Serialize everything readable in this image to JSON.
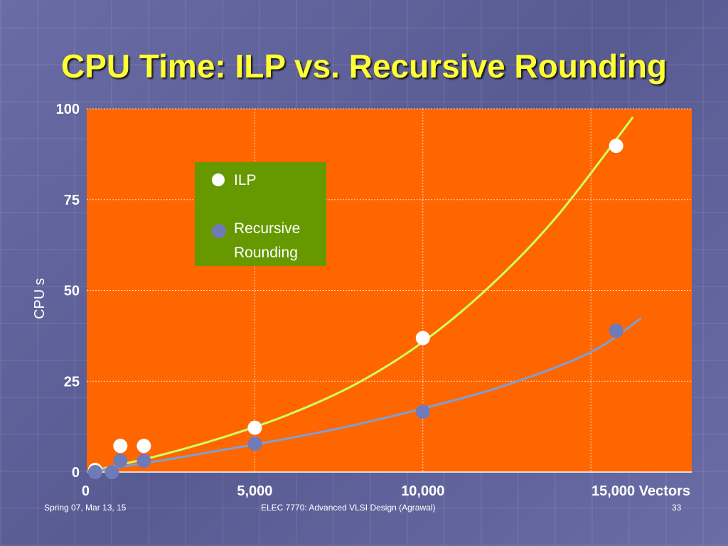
{
  "slide": {
    "title": "CPU Time: ILP vs. Recursive Rounding",
    "footer_left": "Spring 07, Mar 13, 15",
    "footer_center": "ELEC 7770: Advanced VLSI Design (Agrawal)",
    "footer_right": "33"
  },
  "colors": {
    "plot_bg": "#ff6600",
    "legend_bg": "#669900",
    "ilp": "#ffffff",
    "ilp_curve": "#ccff66",
    "recursive": "#6f7ab8",
    "recursive_curve": "#7aa0d8",
    "text": "#ffffff",
    "title": "#ffff33"
  },
  "chart_data": {
    "type": "scatter",
    "title": "CPU Time: ILP vs. Recursive Rounding",
    "xlabel": "Vectors",
    "ylabel": "CPU s",
    "xlim": [
      0,
      18000
    ],
    "ylim": [
      0,
      100
    ],
    "x_ticks": [
      {
        "value": 0,
        "label": "0"
      },
      {
        "value": 5000,
        "label": "5,000"
      },
      {
        "value": 10000,
        "label": "10,000"
      },
      {
        "value": 15000,
        "label": "15,000 Vectors"
      }
    ],
    "y_ticks": [
      {
        "value": 0,
        "label": "0"
      },
      {
        "value": 25,
        "label": "25"
      },
      {
        "value": 50,
        "label": "50"
      },
      {
        "value": 75,
        "label": "75"
      },
      {
        "value": 100,
        "label": "100"
      }
    ],
    "grid": true,
    "legend_position": "top-center",
    "series": [
      {
        "name": "ILP",
        "color": "#ffffff",
        "points": [
          {
            "x": 250,
            "y": 0.6
          },
          {
            "x": 1000,
            "y": 7.2
          },
          {
            "x": 1700,
            "y": 7.2
          },
          {
            "x": 5000,
            "y": 12.2
          },
          {
            "x": 10000,
            "y": 36.9
          },
          {
            "x": 15750,
            "y": 89.8
          }
        ],
        "trend": [
          {
            "x": 0,
            "y": 0
          },
          {
            "x": 2000,
            "y": 4.2
          },
          {
            "x": 4000,
            "y": 9.4
          },
          {
            "x": 6000,
            "y": 15.8
          },
          {
            "x": 8000,
            "y": 24.2
          },
          {
            "x": 10000,
            "y": 35.8
          },
          {
            "x": 12000,
            "y": 51.2
          },
          {
            "x": 14000,
            "y": 70.5
          },
          {
            "x": 16250,
            "y": 97.7
          }
        ]
      },
      {
        "name": "Recursive Rounding",
        "color": "#6f7ab8",
        "points": [
          {
            "x": 250,
            "y": 0
          },
          {
            "x": 750,
            "y": 0
          },
          {
            "x": 1000,
            "y": 3.1
          },
          {
            "x": 1700,
            "y": 3.1
          },
          {
            "x": 5000,
            "y": 7.8
          },
          {
            "x": 10000,
            "y": 16.6
          },
          {
            "x": 15750,
            "y": 38.9
          }
        ],
        "trend": [
          {
            "x": 0,
            "y": 0
          },
          {
            "x": 2500,
            "y": 3.6
          },
          {
            "x": 5000,
            "y": 7.6
          },
          {
            "x": 7500,
            "y": 12.0
          },
          {
            "x": 10000,
            "y": 17.5
          },
          {
            "x": 12500,
            "y": 24.0
          },
          {
            "x": 15000,
            "y": 33.0
          },
          {
            "x": 16500,
            "y": 42.4
          }
        ]
      }
    ]
  }
}
